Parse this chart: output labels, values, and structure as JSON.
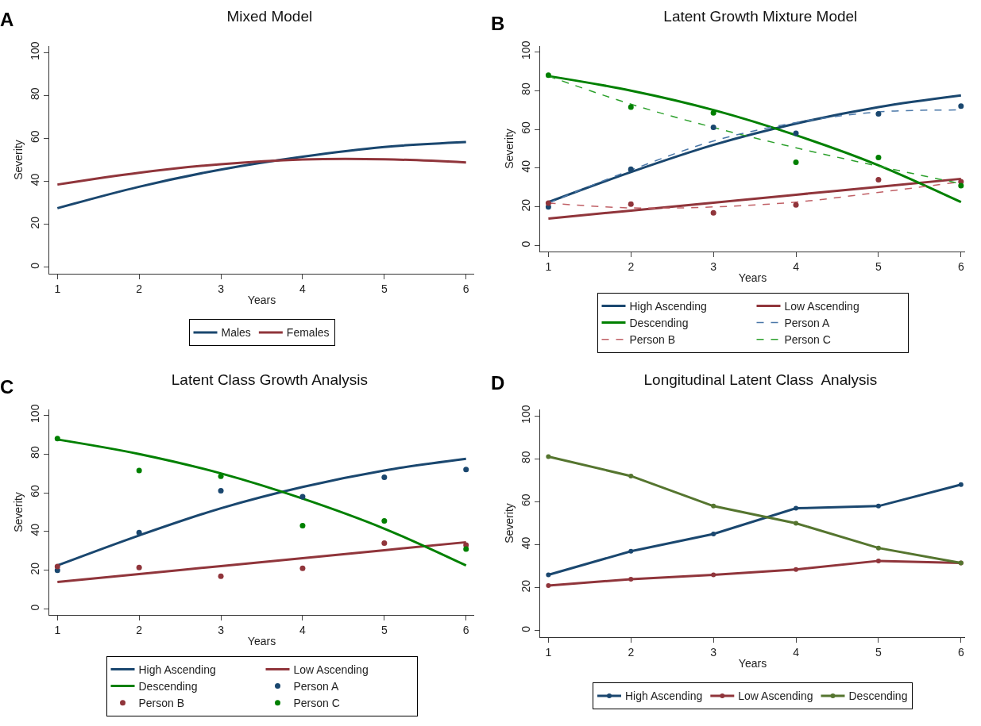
{
  "chart_data": [
    {
      "type": "line",
      "title": "Mixed Model",
      "annotations": [
        "A"
      ],
      "xlabel": "Years",
      "ylabel": "Severity",
      "x": [
        1,
        2,
        3,
        4,
        5,
        6
      ],
      "xlim": [
        0.9,
        6.1
      ],
      "xticks": [
        1,
        2,
        3,
        4,
        5,
        6
      ],
      "ylim": [
        -3,
        103
      ],
      "yticks": [
        0,
        20,
        40,
        60,
        80,
        100
      ],
      "grid": false,
      "legend": "bottom",
      "series": [
        {
          "name": "Males",
          "color": "#1a476f",
          "values": [
            27.5,
            37.5,
            45.5,
            51.5,
            56,
            58.3
          ]
        },
        {
          "name": "Females",
          "color": "#90353b",
          "values": [
            38.5,
            44,
            48,
            50.2,
            50.3,
            48.8
          ]
        }
      ]
    },
    {
      "type": "line",
      "title": "Latent Growth Mixture Model",
      "annotations": [
        "B"
      ],
      "xlabel": "Years",
      "ylabel": "Severity",
      "x": [
        1,
        2,
        3,
        4,
        5,
        6
      ],
      "xlim": [
        0.9,
        6.05
      ],
      "xticks": [
        1,
        2,
        3,
        4,
        5,
        6
      ],
      "ylim": [
        -3,
        103
      ],
      "yticks": [
        0,
        20,
        40,
        60,
        80,
        100
      ],
      "grid": false,
      "legend": "bottom",
      "series": [
        {
          "name": "High Ascending",
          "color": "#1a476f",
          "values": [
            22.5,
            38,
            52,
            63,
            71.5,
            77.5
          ]
        },
        {
          "name": "Low Ascending",
          "color": "#90353b",
          "values": [
            14,
            18.1,
            22.2,
            26.3,
            30.4,
            34.5
          ]
        },
        {
          "name": "Descending",
          "color": "#008000",
          "values": [
            87.5,
            80,
            70,
            57,
            41.5,
            22.5
          ]
        },
        {
          "name": "Person A",
          "color": "#4a77a8",
          "line_style": "dashed",
          "values": [
            22,
            39,
            54,
            63.5,
            69,
            70
          ]
        },
        {
          "name": "Person B",
          "color": "#c06066",
          "line_style": "dashed",
          "values": [
            22,
            19.5,
            20,
            22.5,
            27.5,
            33
          ]
        },
        {
          "name": "Person C",
          "color": "#2ca02c",
          "line_style": "dashed",
          "values": [
            87.5,
            73,
            61,
            50.5,
            41,
            32
          ]
        },
        {
          "type": "scatter",
          "color": "#1a476f",
          "values": [
            20,
            39.5,
            61,
            58,
            68,
            72
          ]
        },
        {
          "type": "scatter",
          "color": "#90353b",
          "values": [
            22,
            21.5,
            17,
            21,
            34,
            33
          ]
        },
        {
          "type": "scatter",
          "color": "#008000",
          "values": [
            88,
            71.5,
            68.5,
            43,
            45.5,
            31
          ]
        }
      ]
    },
    {
      "type": "line",
      "title": "Latent Class Growth Analysis",
      "annotations": [
        "C"
      ],
      "xlabel": "Years",
      "ylabel": "Severity",
      "x": [
        1,
        2,
        3,
        4,
        5,
        6
      ],
      "xlim": [
        0.9,
        6.1
      ],
      "xticks": [
        1,
        2,
        3,
        4,
        5,
        6
      ],
      "ylim": [
        -3,
        103
      ],
      "yticks": [
        0,
        20,
        40,
        60,
        80,
        100
      ],
      "grid": false,
      "legend": "bottom",
      "series": [
        {
          "name": "High Ascending",
          "color": "#1a476f",
          "values": [
            22.5,
            38,
            52,
            63,
            71.5,
            77.5
          ]
        },
        {
          "name": "Low Ascending",
          "color": "#90353b",
          "values": [
            14,
            18.1,
            22.2,
            26.3,
            30.4,
            34.5
          ]
        },
        {
          "name": "Descending",
          "color": "#008000",
          "values": [
            87.5,
            80,
            70,
            57,
            41.5,
            22.5
          ]
        },
        {
          "name": "Person A",
          "type": "scatter",
          "color": "#1a476f",
          "values": [
            20,
            39.5,
            61,
            58,
            68,
            72
          ]
        },
        {
          "name": "Person B",
          "type": "scatter",
          "color": "#90353b",
          "values": [
            22,
            21.5,
            17,
            21,
            34,
            33
          ]
        },
        {
          "name": "Person C",
          "type": "scatter",
          "color": "#008000",
          "values": [
            88,
            71.5,
            68.5,
            43,
            45.5,
            31
          ]
        }
      ]
    },
    {
      "type": "line",
      "title": "Longitudinal Latent Class  Analysis",
      "annotations": [
        "D"
      ],
      "xlabel": "Years",
      "ylabel": "Severity",
      "x": [
        1,
        2,
        3,
        4,
        5,
        6
      ],
      "xlim": [
        0.9,
        6.05
      ],
      "xticks": [
        1,
        2,
        3,
        4,
        5,
        6
      ],
      "ylim": [
        -3,
        103
      ],
      "yticks": [
        0,
        20,
        40,
        60,
        80,
        100
      ],
      "grid": false,
      "legend": "bottom",
      "marker": "circle",
      "series": [
        {
          "name": "High Ascending",
          "color": "#1a476f",
          "values": [
            26,
            37,
            45,
            57,
            58,
            68
          ]
        },
        {
          "name": "Low Ascending",
          "color": "#90353b",
          "values": [
            21,
            24,
            26,
            28.5,
            32.5,
            31.5
          ]
        },
        {
          "name": "Descending",
          "color": "#55752f",
          "values": [
            81,
            72,
            58,
            50,
            38.5,
            31.5
          ]
        }
      ]
    }
  ]
}
